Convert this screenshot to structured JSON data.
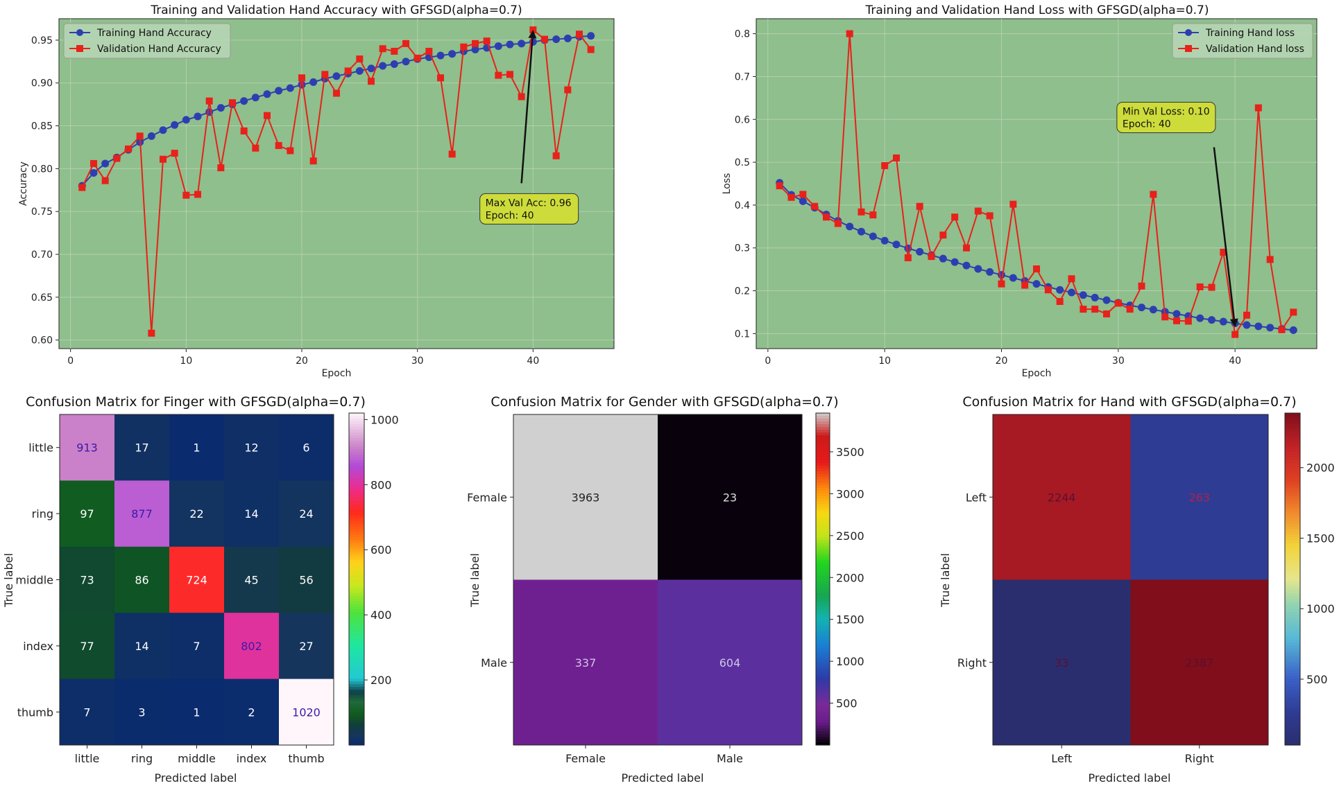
{
  "chart_data": [
    {
      "type": "line",
      "title": "Training and Validation Hand Accuracy with GFSGD(alpha=0.7)",
      "xlabel": "Epoch",
      "ylabel": "Accuracy",
      "xlim": [
        -1,
        47
      ],
      "ylim": [
        0.59,
        0.975
      ],
      "xticks": [
        0,
        10,
        20,
        30,
        40
      ],
      "yticks": [
        0.6,
        0.65,
        0.7,
        0.75,
        0.8,
        0.85,
        0.9,
        0.95
      ],
      "ytick_labels": [
        "0.60",
        "0.65",
        "0.70",
        "0.75",
        "0.80",
        "0.85",
        "0.90",
        "0.95"
      ],
      "x": [
        1,
        2,
        3,
        4,
        5,
        6,
        7,
        8,
        9,
        10,
        11,
        12,
        13,
        14,
        15,
        16,
        17,
        18,
        19,
        20,
        21,
        22,
        23,
        24,
        25,
        26,
        27,
        28,
        29,
        30,
        31,
        32,
        33,
        34,
        35,
        36,
        37,
        38,
        39,
        40,
        41,
        42,
        43,
        44,
        45
      ],
      "series": [
        {
          "name": "Training Hand Accuracy",
          "color": "#2d3fb0",
          "marker": "circle",
          "values": [
            0.78,
            0.795,
            0.806,
            0.813,
            0.822,
            0.831,
            0.838,
            0.845,
            0.851,
            0.857,
            0.861,
            0.866,
            0.871,
            0.875,
            0.879,
            0.883,
            0.887,
            0.891,
            0.894,
            0.898,
            0.901,
            0.905,
            0.908,
            0.911,
            0.914,
            0.917,
            0.92,
            0.922,
            0.925,
            0.928,
            0.93,
            0.932,
            0.934,
            0.937,
            0.939,
            0.941,
            0.943,
            0.945,
            0.946,
            0.948,
            0.95,
            0.951,
            0.952,
            0.954,
            0.955
          ]
        },
        {
          "name": "Validation Hand Accuracy",
          "color": "#e8211b",
          "marker": "square",
          "values": [
            0.778,
            0.806,
            0.786,
            0.812,
            0.823,
            0.838,
            0.608,
            0.811,
            0.818,
            0.769,
            0.77,
            0.879,
            0.801,
            0.877,
            0.844,
            0.824,
            0.862,
            0.827,
            0.821,
            0.906,
            0.809,
            0.91,
            0.888,
            0.914,
            0.928,
            0.902,
            0.94,
            0.937,
            0.946,
            0.929,
            0.937,
            0.906,
            0.817,
            0.942,
            0.946,
            0.949,
            0.909,
            0.91,
            0.884,
            0.962,
            0.951,
            0.815,
            0.892,
            0.957,
            0.939
          ]
        }
      ],
      "annotation": {
        "text_line1": "Max Val Acc: 0.96",
        "text_line2": "Epoch: 40",
        "point": [
          40,
          0.962
        ],
        "text_at": [
          39,
          0.783
        ]
      }
    },
    {
      "type": "line",
      "title": "Training and Validation Hand Loss with GFSGD(alpha=0.7)",
      "xlabel": "Epoch",
      "ylabel": "Loss",
      "xlim": [
        -1,
        47
      ],
      "ylim": [
        0.065,
        0.835
      ],
      "xticks": [
        0,
        10,
        20,
        30,
        40
      ],
      "yticks": [
        0.1,
        0.2,
        0.3,
        0.4,
        0.5,
        0.6,
        0.7,
        0.8
      ],
      "ytick_labels": [
        "0.1",
        "0.2",
        "0.3",
        "0.4",
        "0.5",
        "0.6",
        "0.7",
        "0.8"
      ],
      "x": [
        1,
        2,
        3,
        4,
        5,
        6,
        7,
        8,
        9,
        10,
        11,
        12,
        13,
        14,
        15,
        16,
        17,
        18,
        19,
        20,
        21,
        22,
        23,
        24,
        25,
        26,
        27,
        28,
        29,
        30,
        31,
        32,
        33,
        34,
        35,
        36,
        37,
        38,
        39,
        40,
        41,
        42,
        43,
        44,
        45
      ],
      "series": [
        {
          "name": "Training Hand loss",
          "color": "#2d3fb0",
          "marker": "circle",
          "values": [
            0.452,
            0.424,
            0.409,
            0.394,
            0.378,
            0.363,
            0.35,
            0.338,
            0.327,
            0.317,
            0.308,
            0.299,
            0.291,
            0.283,
            0.275,
            0.267,
            0.259,
            0.251,
            0.244,
            0.237,
            0.23,
            0.223,
            0.216,
            0.209,
            0.202,
            0.196,
            0.19,
            0.184,
            0.178,
            0.172,
            0.166,
            0.161,
            0.156,
            0.151,
            0.146,
            0.141,
            0.136,
            0.132,
            0.128,
            0.124,
            0.12,
            0.117,
            0.114,
            0.111,
            0.108
          ]
        },
        {
          "name": "Validation Hand loss",
          "color": "#e8211b",
          "marker": "square",
          "values": [
            0.445,
            0.418,
            0.425,
            0.397,
            0.372,
            0.357,
            0.8,
            0.384,
            0.377,
            0.492,
            0.51,
            0.277,
            0.397,
            0.28,
            0.33,
            0.372,
            0.3,
            0.386,
            0.375,
            0.216,
            0.402,
            0.213,
            0.251,
            0.202,
            0.175,
            0.228,
            0.157,
            0.157,
            0.146,
            0.171,
            0.157,
            0.211,
            0.425,
            0.139,
            0.13,
            0.129,
            0.209,
            0.208,
            0.29,
            0.098,
            0.143,
            0.627,
            0.273,
            0.109,
            0.15
          ]
        }
      ],
      "annotation": {
        "text_line1": "Min Val Loss: 0.10",
        "text_line2": "Epoch: 40",
        "point": [
          40,
          0.115
        ],
        "text_at": [
          38.2,
          0.535
        ]
      }
    },
    {
      "type": "heatmap",
      "title": "Confusion Matrix for Finger with GFSGD(alpha=0.7)",
      "xlabel": "Predicted label",
      "ylabel": "True label",
      "labels": [
        "little",
        "ring",
        "middle",
        "index",
        "thumb"
      ],
      "matrix": [
        [
          913,
          17,
          1,
          12,
          6
        ],
        [
          97,
          877,
          22,
          14,
          24
        ],
        [
          73,
          86,
          724,
          45,
          56
        ],
        [
          77,
          14,
          7,
          802,
          27
        ],
        [
          7,
          3,
          1,
          2,
          1020
        ]
      ],
      "colormap": "gist_ncar",
      "colorbar_ticks": [
        "200",
        "400",
        "600",
        "800",
        "1000"
      ]
    },
    {
      "type": "heatmap",
      "title": "Confusion Matrix for Gender with GFSGD(alpha=0.7)",
      "xlabel": "Predicted label",
      "ylabel": "True label",
      "labels": [
        "Female",
        "Male"
      ],
      "matrix": [
        [
          3963,
          23
        ],
        [
          337,
          604
        ]
      ],
      "colormap": "nipy_spectral",
      "colorbar_ticks": [
        "500",
        "1000",
        "1500",
        "2000",
        "2500",
        "3000",
        "3500"
      ]
    },
    {
      "type": "heatmap",
      "title": "Confusion Matrix for Hand with GFSGD(alpha=0.7)",
      "xlabel": "Predicted label",
      "ylabel": "True label",
      "labels": [
        "Left",
        "Right"
      ],
      "matrix": [
        [
          2244,
          263
        ],
        [
          33,
          2387
        ]
      ],
      "colormap": "RdYlBu_r",
      "colorbar_ticks": [
        "500",
        "1000",
        "1500",
        "2000"
      ]
    }
  ]
}
